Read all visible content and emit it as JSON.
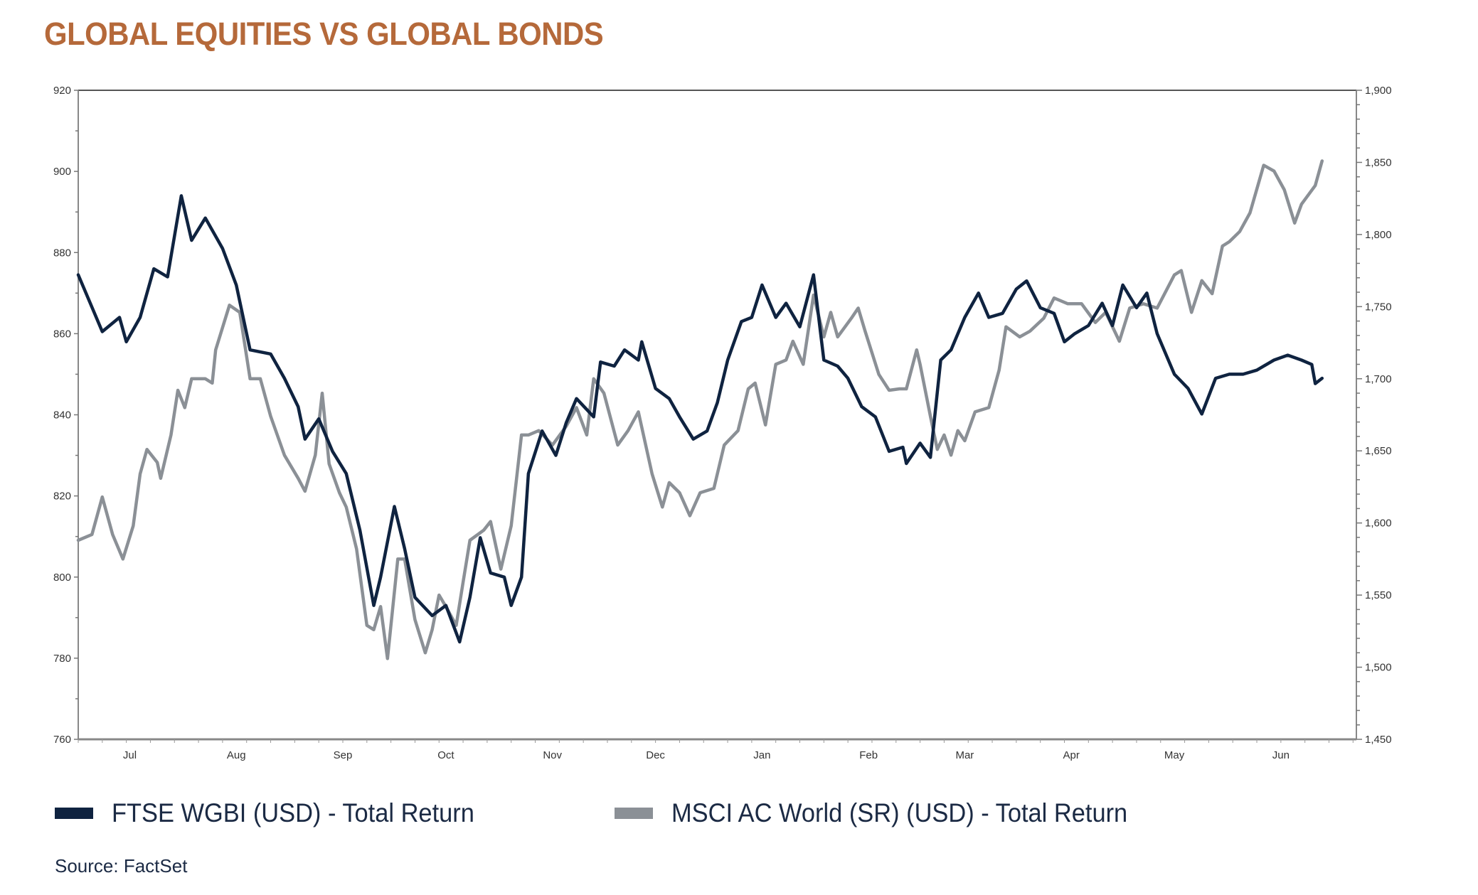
{
  "title": "GLOBAL EQUITIES VS GLOBAL BONDS",
  "source": "Source: FactSet",
  "colors": {
    "title": "#b5693a",
    "bonds": "#0f2340",
    "equities": "#8b9096",
    "axis": "#555555"
  },
  "chart_data": {
    "type": "line",
    "title": "GLOBAL EQUITIES VS GLOBAL BONDS",
    "grid": false,
    "legend_position": "bottom",
    "x_tick_labels": [
      "Jul",
      "Aug",
      "Sep",
      "Oct",
      "Nov",
      "Dec",
      "Jan",
      "Feb",
      "Mar",
      "Apr",
      "May",
      "Jun"
    ],
    "y_left": {
      "range": [
        760,
        920
      ],
      "ticks": [
        "760",
        "780",
        "800",
        "820",
        "840",
        "860",
        "880",
        "900",
        "920"
      ]
    },
    "y_right": {
      "range": [
        1450,
        1900
      ],
      "ticks": [
        "1,450",
        "1,500",
        "1,550",
        "1,600",
        "1,650",
        "1,700",
        "1,750",
        "1,800",
        "1,850",
        "1,900"
      ]
    },
    "series": [
      {
        "name": "FTSE WGBI (USD) - Total Return",
        "axis": "left",
        "color": "#0f2340",
        "points": [
          [
            "Jul 1",
            874.5
          ],
          [
            "Jul 8",
            860.5
          ],
          [
            "Jul 13",
            864
          ],
          [
            "Jul 15",
            858
          ],
          [
            "Jul 19",
            864
          ],
          [
            "Jul 23",
            876
          ],
          [
            "Jul 27",
            874
          ],
          [
            "Jul 31",
            894
          ],
          [
            "Aug 3",
            883
          ],
          [
            "Aug 7",
            888.5
          ],
          [
            "Aug 12",
            881
          ],
          [
            "Aug 16",
            872
          ],
          [
            "Aug 20",
            856
          ],
          [
            "Aug 26",
            855
          ],
          [
            "Aug 30",
            849
          ],
          [
            "Sep 3",
            842
          ],
          [
            "Sep 5",
            834
          ],
          [
            "Sep 9",
            839
          ],
          [
            "Sep 13",
            831
          ],
          [
            "Sep 17",
            825.5
          ],
          [
            "Sep 21",
            811.5
          ],
          [
            "Sep 25",
            793
          ],
          [
            "Sep 27",
            800
          ],
          [
            "Oct 1",
            817.4
          ],
          [
            "Oct 4",
            807
          ],
          [
            "Oct 7",
            795
          ],
          [
            "Oct 12",
            790.5
          ],
          [
            "Oct 16",
            793
          ],
          [
            "Oct 20",
            784
          ],
          [
            "Oct 23",
            795
          ],
          [
            "Oct 26",
            809.7
          ],
          [
            "Oct 29",
            801
          ],
          [
            "Nov 2",
            800
          ],
          [
            "Nov 4",
            793
          ],
          [
            "Nov 7",
            800
          ],
          [
            "Nov 9",
            825.5
          ],
          [
            "Nov 13",
            836
          ],
          [
            "Nov 17",
            830
          ],
          [
            "Nov 20",
            838
          ],
          [
            "Nov 23",
            844
          ],
          [
            "Nov 28",
            839.5
          ],
          [
            "Nov 30",
            853
          ],
          [
            "Dec 4",
            852
          ],
          [
            "Dec 7",
            856
          ],
          [
            "Dec 11",
            853.5
          ],
          [
            "Dec 12",
            858
          ],
          [
            "Dec 16",
            846.5
          ],
          [
            "Dec 20",
            844
          ],
          [
            "Dec 23",
            839.5
          ],
          [
            "Dec 27",
            834
          ],
          [
            "Dec 31",
            836
          ],
          [
            "Jan 3",
            843
          ],
          [
            "Jan 6",
            853.5
          ],
          [
            "Jan 10",
            863
          ],
          [
            "Jan 13",
            864
          ],
          [
            "Jan 16",
            872
          ],
          [
            "Jan 20",
            864
          ],
          [
            "Jan 23",
            867.5
          ],
          [
            "Jan 27",
            861.7
          ],
          [
            "Jan 31",
            874.5
          ],
          [
            "Feb 3",
            853.5
          ],
          [
            "Feb 7",
            852
          ],
          [
            "Feb 10",
            849
          ],
          [
            "Feb 14",
            842
          ],
          [
            "Feb 18",
            839.5
          ],
          [
            "Feb 22",
            831
          ],
          [
            "Feb 26",
            832
          ],
          [
            "Feb 27",
            828
          ],
          [
            "Mar 3",
            833
          ],
          [
            "Mar 6",
            829.5
          ],
          [
            "Mar 9",
            853.5
          ],
          [
            "Mar 12",
            856
          ],
          [
            "Mar 16",
            864
          ],
          [
            "Mar 20",
            870
          ],
          [
            "Mar 23",
            864
          ],
          [
            "Mar 27",
            865
          ],
          [
            "Mar 31",
            871
          ],
          [
            "Apr 3",
            873
          ],
          [
            "Apr 7",
            866.4
          ],
          [
            "Apr 11",
            865
          ],
          [
            "Apr 14",
            858
          ],
          [
            "Apr 17",
            860
          ],
          [
            "Apr 21",
            862
          ],
          [
            "Apr 25",
            867.5
          ],
          [
            "Apr 28",
            862
          ],
          [
            "May 1",
            872
          ],
          [
            "May 5",
            866.4
          ],
          [
            "May 8",
            870
          ],
          [
            "May 11",
            860
          ],
          [
            "May 16",
            850
          ],
          [
            "May 20",
            846.5
          ],
          [
            "May 24",
            840.2
          ],
          [
            "May 28",
            849
          ],
          [
            "Jun 1",
            850
          ],
          [
            "Jun 5",
            850
          ],
          [
            "Jun 9",
            851
          ],
          [
            "Jun 14",
            853.5
          ],
          [
            "Jun 18",
            854.7
          ],
          [
            "Jun 22",
            853.5
          ],
          [
            "Jun 25",
            852.4
          ],
          [
            "Jun 26",
            847.7
          ],
          [
            "Jun 28",
            849
          ]
        ]
      },
      {
        "name": "MSCI AC World (SR) (USD) - Total Return",
        "axis": "right",
        "color": "#8b9096",
        "points": [
          [
            "Jul 1",
            1588
          ],
          [
            "Jul 5",
            1592
          ],
          [
            "Jul 8",
            1618
          ],
          [
            "Jul 11",
            1592
          ],
          [
            "Jul 14",
            1575
          ],
          [
            "Jul 17",
            1598
          ],
          [
            "Jul 19",
            1634
          ],
          [
            "Jul 21",
            1651
          ],
          [
            "Jul 24",
            1642
          ],
          [
            "Jul 25",
            1631
          ],
          [
            "Jul 28",
            1661
          ],
          [
            "Jul 30",
            1692
          ],
          [
            "Aug 1",
            1680
          ],
          [
            "Aug 3",
            1700
          ],
          [
            "Aug 7",
            1700
          ],
          [
            "Aug 9",
            1697
          ],
          [
            "Aug 10",
            1720
          ],
          [
            "Aug 14",
            1751
          ],
          [
            "Aug 17",
            1746
          ],
          [
            "Aug 20",
            1700
          ],
          [
            "Aug 23",
            1700
          ],
          [
            "Aug 26",
            1674
          ],
          [
            "Aug 30",
            1647
          ],
          [
            "Sep 3",
            1631
          ],
          [
            "Sep 5",
            1622
          ],
          [
            "Sep 8",
            1647
          ],
          [
            "Sep 10",
            1690
          ],
          [
            "Sep 12",
            1641
          ],
          [
            "Sep 15",
            1621
          ],
          [
            "Sep 17",
            1611
          ],
          [
            "Sep 20",
            1582
          ],
          [
            "Sep 23",
            1529
          ],
          [
            "Sep 25",
            1526
          ],
          [
            "Sep 27",
            1542
          ],
          [
            "Sep 29",
            1506
          ],
          [
            "Oct 2",
            1575
          ],
          [
            "Oct 4",
            1575
          ],
          [
            "Oct 7",
            1533
          ],
          [
            "Oct 10",
            1510
          ],
          [
            "Oct 12",
            1526
          ],
          [
            "Oct 14",
            1550
          ],
          [
            "Oct 16",
            1542
          ],
          [
            "Oct 19",
            1529
          ],
          [
            "Oct 21",
            1559
          ],
          [
            "Oct 23",
            1588
          ],
          [
            "Oct 27",
            1595
          ],
          [
            "Oct 29",
            1601
          ],
          [
            "Nov 1",
            1568
          ],
          [
            "Nov 4",
            1598
          ],
          [
            "Nov 7",
            1661
          ],
          [
            "Nov 9",
            1661
          ],
          [
            "Nov 12",
            1664
          ],
          [
            "Nov 16",
            1654
          ],
          [
            "Nov 20",
            1667
          ],
          [
            "Nov 23",
            1680
          ],
          [
            "Nov 26",
            1661
          ],
          [
            "Nov 28",
            1700
          ],
          [
            "Dec 1",
            1690
          ],
          [
            "Dec 5",
            1654
          ],
          [
            "Dec 8",
            1664
          ],
          [
            "Dec 11",
            1677
          ],
          [
            "Dec 15",
            1634
          ],
          [
            "Dec 18",
            1611
          ],
          [
            "Dec 20",
            1628
          ],
          [
            "Dec 23",
            1621
          ],
          [
            "Dec 26",
            1605
          ],
          [
            "Dec 29",
            1621
          ],
          [
            "Jan 2",
            1624
          ],
          [
            "Jan 5",
            1654
          ],
          [
            "Jan 9",
            1664
          ],
          [
            "Jan 12",
            1693
          ],
          [
            "Jan 14",
            1697
          ],
          [
            "Jan 17",
            1668
          ],
          [
            "Jan 20",
            1710
          ],
          [
            "Jan 23",
            1713
          ],
          [
            "Jan 25",
            1726
          ],
          [
            "Jan 28",
            1710
          ],
          [
            "Jan 31",
            1758
          ],
          [
            "Feb 3",
            1729
          ],
          [
            "Feb 5",
            1746
          ],
          [
            "Feb 7",
            1729
          ],
          [
            "Feb 11",
            1742
          ],
          [
            "Feb 13",
            1749
          ],
          [
            "Feb 15",
            1733
          ],
          [
            "Feb 19",
            1703
          ],
          [
            "Feb 22",
            1692
          ],
          [
            "Feb 25",
            1693
          ],
          [
            "Feb 27",
            1693
          ],
          [
            "Mar 2",
            1720
          ],
          [
            "Mar 3",
            1710
          ],
          [
            "Mar 6",
            1674
          ],
          [
            "Mar 8",
            1651
          ],
          [
            "Mar 10",
            1661
          ],
          [
            "Mar 12",
            1647
          ],
          [
            "Mar 14",
            1664
          ],
          [
            "Mar 16",
            1657
          ],
          [
            "Mar 19",
            1677
          ],
          [
            "Mar 23",
            1680
          ],
          [
            "Mar 26",
            1706
          ],
          [
            "Mar 28",
            1736
          ],
          [
            "Apr 1",
            1729
          ],
          [
            "Apr 4",
            1733
          ],
          [
            "Apr 8",
            1742
          ],
          [
            "Apr 11",
            1756
          ],
          [
            "Apr 15",
            1752
          ],
          [
            "Apr 19",
            1752
          ],
          [
            "Apr 23",
            1739
          ],
          [
            "Apr 26",
            1746
          ],
          [
            "Apr 30",
            1726
          ],
          [
            "May 3",
            1749
          ],
          [
            "May 7",
            1752
          ],
          [
            "May 11",
            1749
          ],
          [
            "May 16",
            1772
          ],
          [
            "May 18",
            1775
          ],
          [
            "May 21",
            1746
          ],
          [
            "May 24",
            1768
          ],
          [
            "May 27",
            1759
          ],
          [
            "May 30",
            1792
          ],
          [
            "Jun 1",
            1795
          ],
          [
            "Jun 4",
            1802
          ],
          [
            "Jun 7",
            1815
          ],
          [
            "Jun 11",
            1848
          ],
          [
            "Jun 14",
            1844
          ],
          [
            "Jun 17",
            1831
          ],
          [
            "Jun 20",
            1808
          ],
          [
            "Jun 22",
            1821
          ],
          [
            "Jun 26",
            1834
          ],
          [
            "Jun 28",
            1851
          ]
        ]
      }
    ]
  }
}
